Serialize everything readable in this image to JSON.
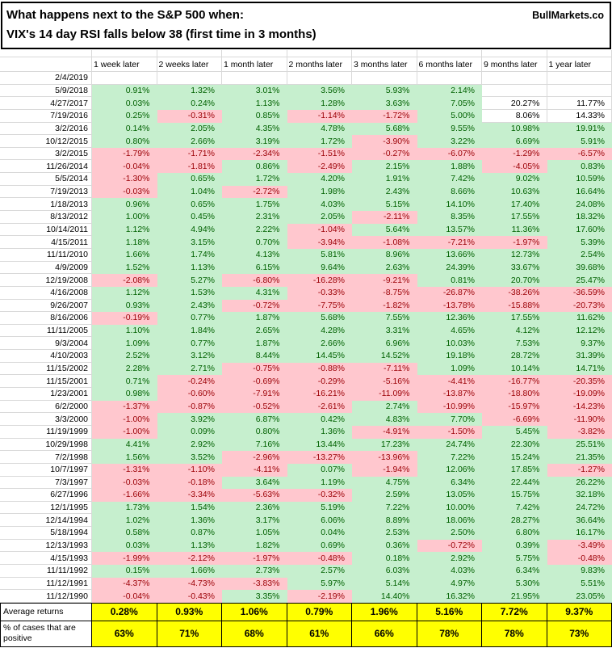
{
  "title": {
    "line1": "What happens next to the S&P 500 when:",
    "line2": "VIX's 14 day RSI falls below 38 (first time in 3 months)",
    "brand": "BullMarkets.co"
  },
  "chart_data": {
    "type": "table",
    "columns": [
      "1 week later",
      "2 weeks later",
      "1 month later",
      "2 months later",
      "3 months later",
      "6 months later",
      "9 months later",
      "1 year later"
    ],
    "rows": [
      {
        "date": "2/4/2019",
        "values": [
          null,
          null,
          null,
          null,
          null,
          null,
          null,
          null
        ]
      },
      {
        "date": "5/9/2018",
        "values": [
          "0.91%",
          "1.32%",
          "3.01%",
          "3.56%",
          "5.93%",
          "2.14%",
          null,
          null
        ]
      },
      {
        "date": "4/27/2017",
        "values": [
          "0.03%",
          "0.24%",
          "1.13%",
          "1.28%",
          "3.63%",
          "7.05%",
          "20.27%",
          "11.77%"
        ]
      },
      {
        "date": "7/19/2016",
        "values": [
          "0.25%",
          "-0.31%",
          "0.85%",
          "-1.14%",
          "-1.72%",
          "5.00%",
          "8.06%",
          "14.33%"
        ]
      },
      {
        "date": "3/2/2016",
        "values": [
          "0.14%",
          "2.05%",
          "4.35%",
          "4.78%",
          "5.68%",
          "9.55%",
          "10.98%",
          "19.91%"
        ]
      },
      {
        "date": "10/12/2015",
        "values": [
          "0.80%",
          "2.66%",
          "3.19%",
          "1.72%",
          "-3.90%",
          "3.22%",
          "6.69%",
          "5.91%"
        ]
      },
      {
        "date": "3/2/2015",
        "values": [
          "-1.79%",
          "-1.71%",
          "-2.34%",
          "-1.51%",
          "-0.27%",
          "-6.07%",
          "-1.29%",
          "-6.57%"
        ]
      },
      {
        "date": "11/26/2014",
        "values": [
          "-0.04%",
          "-1.81%",
          "0.86%",
          "-2.49%",
          "2.15%",
          "1.88%",
          "-4.05%",
          "0.83%"
        ]
      },
      {
        "date": "5/5/2014",
        "values": [
          "-1.30%",
          "0.65%",
          "1.72%",
          "4.20%",
          "1.91%",
          "7.42%",
          "9.02%",
          "10.59%"
        ]
      },
      {
        "date": "7/19/2013",
        "values": [
          "-0.03%",
          "1.04%",
          "-2.72%",
          "1.98%",
          "2.43%",
          "8.66%",
          "10.63%",
          "16.64%"
        ]
      },
      {
        "date": "1/18/2013",
        "values": [
          "0.96%",
          "0.65%",
          "1.75%",
          "4.03%",
          "5.15%",
          "14.10%",
          "17.40%",
          "24.08%"
        ]
      },
      {
        "date": "8/13/2012",
        "values": [
          "1.00%",
          "0.45%",
          "2.31%",
          "2.05%",
          "-2.11%",
          "8.35%",
          "17.55%",
          "18.32%"
        ]
      },
      {
        "date": "10/14/2011",
        "values": [
          "1.12%",
          "4.94%",
          "2.22%",
          "-1.04%",
          "5.64%",
          "13.57%",
          "11.36%",
          "17.60%"
        ]
      },
      {
        "date": "4/15/2011",
        "values": [
          "1.18%",
          "3.15%",
          "0.70%",
          "-3.94%",
          "-1.08%",
          "-7.21%",
          "-1.97%",
          "5.39%"
        ]
      },
      {
        "date": "11/11/2010",
        "values": [
          "1.66%",
          "1.74%",
          "4.13%",
          "5.81%",
          "8.96%",
          "13.66%",
          "12.73%",
          "2.54%"
        ]
      },
      {
        "date": "4/9/2009",
        "values": [
          "1.52%",
          "1.13%",
          "6.15%",
          "9.64%",
          "2.63%",
          "24.39%",
          "33.67%",
          "39.68%"
        ]
      },
      {
        "date": "12/19/2008",
        "values": [
          "-2.08%",
          "5.27%",
          "-6.80%",
          "-16.28%",
          "-9.21%",
          "0.81%",
          "20.70%",
          "25.47%"
        ]
      },
      {
        "date": "4/16/2008",
        "values": [
          "1.12%",
          "1.53%",
          "4.31%",
          "-0.33%",
          "-8.75%",
          "-26.87%",
          "-38.26%",
          "-36.59%"
        ]
      },
      {
        "date": "9/26/2007",
        "values": [
          "0.93%",
          "2.43%",
          "-0.72%",
          "-7.75%",
          "-1.82%",
          "-13.78%",
          "-15.88%",
          "-20.73%"
        ]
      },
      {
        "date": "8/16/2006",
        "values": [
          "-0.19%",
          "0.77%",
          "1.87%",
          "5.68%",
          "7.55%",
          "12.36%",
          "17.55%",
          "11.62%"
        ]
      },
      {
        "date": "11/11/2005",
        "values": [
          "1.10%",
          "1.84%",
          "2.65%",
          "4.28%",
          "3.31%",
          "4.65%",
          "4.12%",
          "12.12%"
        ]
      },
      {
        "date": "9/3/2004",
        "values": [
          "1.09%",
          "0.77%",
          "1.87%",
          "2.66%",
          "6.96%",
          "10.03%",
          "7.53%",
          "9.37%"
        ]
      },
      {
        "date": "4/10/2003",
        "values": [
          "2.52%",
          "3.12%",
          "8.44%",
          "14.45%",
          "14.52%",
          "19.18%",
          "28.72%",
          "31.39%"
        ]
      },
      {
        "date": "11/15/2002",
        "values": [
          "2.28%",
          "2.71%",
          "-0.75%",
          "-0.88%",
          "-7.11%",
          "1.09%",
          "10.14%",
          "14.71%"
        ]
      },
      {
        "date": "11/15/2001",
        "values": [
          "0.71%",
          "-0.24%",
          "-0.69%",
          "-0.29%",
          "-5.16%",
          "-4.41%",
          "-16.77%",
          "-20.35%"
        ]
      },
      {
        "date": "1/23/2001",
        "values": [
          "0.98%",
          "-0.60%",
          "-7.91%",
          "-16.21%",
          "-11.09%",
          "-13.87%",
          "-18.80%",
          "-19.09%"
        ]
      },
      {
        "date": "6/2/2000",
        "values": [
          "-1.37%",
          "-0.87%",
          "-0.52%",
          "-2.61%",
          "2.74%",
          "-10.99%",
          "-15.97%",
          "-14.23%"
        ]
      },
      {
        "date": "3/3/2000",
        "values": [
          "-1.00%",
          "3.92%",
          "6.87%",
          "0.42%",
          "4.83%",
          "7.70%",
          "-6.69%",
          "-11.90%"
        ]
      },
      {
        "date": "11/19/1999",
        "values": [
          "-1.00%",
          "0.09%",
          "0.80%",
          "1.36%",
          "-4.91%",
          "-1.50%",
          "5.45%",
          "-3.82%"
        ]
      },
      {
        "date": "10/29/1998",
        "values": [
          "4.41%",
          "2.92%",
          "7.16%",
          "13.44%",
          "17.23%",
          "24.74%",
          "22.30%",
          "25.51%"
        ]
      },
      {
        "date": "7/2/1998",
        "values": [
          "1.56%",
          "3.52%",
          "-2.96%",
          "-13.27%",
          "-13.96%",
          "7.22%",
          "15.24%",
          "21.35%"
        ]
      },
      {
        "date": "10/7/1997",
        "values": [
          "-1.31%",
          "-1.10%",
          "-4.11%",
          "0.07%",
          "-1.94%",
          "12.06%",
          "17.85%",
          "-1.27%"
        ]
      },
      {
        "date": "7/3/1997",
        "values": [
          "-0.03%",
          "-0.18%",
          "3.64%",
          "1.19%",
          "4.75%",
          "6.34%",
          "22.44%",
          "26.22%"
        ]
      },
      {
        "date": "6/27/1996",
        "values": [
          "-1.66%",
          "-3.34%",
          "-5.63%",
          "-0.32%",
          "2.59%",
          "13.05%",
          "15.75%",
          "32.18%"
        ]
      },
      {
        "date": "12/1/1995",
        "values": [
          "1.73%",
          "1.54%",
          "2.36%",
          "5.19%",
          "7.22%",
          "10.00%",
          "7.42%",
          "24.72%"
        ]
      },
      {
        "date": "12/14/1994",
        "values": [
          "1.02%",
          "1.36%",
          "3.17%",
          "6.06%",
          "8.89%",
          "18.06%",
          "28.27%",
          "36.64%"
        ]
      },
      {
        "date": "5/18/1994",
        "values": [
          "0.58%",
          "0.87%",
          "1.05%",
          "0.04%",
          "2.53%",
          "2.50%",
          "6.80%",
          "16.17%"
        ]
      },
      {
        "date": "12/13/1993",
        "values": [
          "0.03%",
          "1.13%",
          "1.82%",
          "0.69%",
          "0.36%",
          "-0.72%",
          "0.39%",
          "-3.49%"
        ]
      },
      {
        "date": "4/15/1993",
        "values": [
          "-1.99%",
          "-2.12%",
          "-1.97%",
          "-0.48%",
          "0.18%",
          "2.92%",
          "5.75%",
          "-0.48%"
        ]
      },
      {
        "date": "11/11/1992",
        "values": [
          "0.15%",
          "1.66%",
          "2.73%",
          "2.57%",
          "6.03%",
          "4.03%",
          "6.34%",
          "9.83%"
        ]
      },
      {
        "date": "11/12/1991",
        "values": [
          "-4.37%",
          "-4.73%",
          "-3.83%",
          "5.97%",
          "5.14%",
          "4.97%",
          "5.30%",
          "5.51%"
        ]
      },
      {
        "date": "11/12/1990",
        "values": [
          "-0.04%",
          "-0.43%",
          "3.35%",
          "-2.19%",
          "14.40%",
          "16.32%",
          "21.95%",
          "23.05%"
        ]
      }
    ],
    "unfilled_cells": [
      [
        2,
        6
      ],
      [
        2,
        7
      ],
      [
        3,
        6
      ],
      [
        3,
        7
      ]
    ],
    "footer": {
      "avg_label": "Average returns",
      "avg_values": [
        "0.28%",
        "0.93%",
        "1.06%",
        "0.79%",
        "1.96%",
        "5.16%",
        "7.72%",
        "9.37%"
      ],
      "pct_label": "% of cases that are positive",
      "pct_values": [
        "63%",
        "71%",
        "68%",
        "61%",
        "66%",
        "78%",
        "78%",
        "73%"
      ]
    },
    "colors": {
      "positive_bg": "#c6efce",
      "positive_text": "#006100",
      "negative_bg": "#ffc7ce",
      "negative_text": "#9c0006",
      "footer_bg": "#ffff00"
    }
  }
}
